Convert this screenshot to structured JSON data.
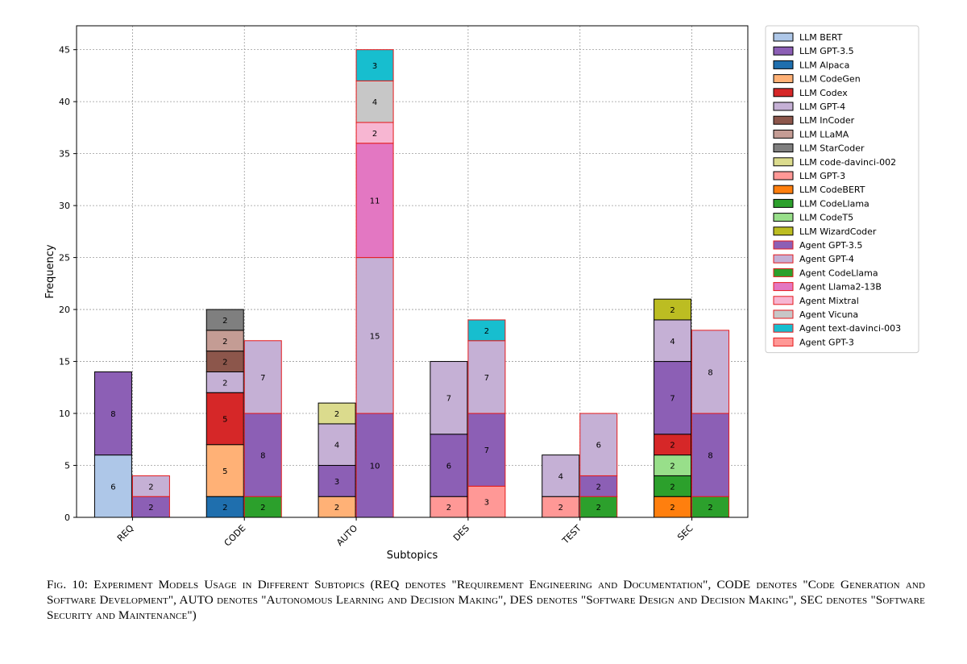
{
  "figure": {
    "caption_label": "Fig. 10:",
    "caption_text": "Experiment Models Usage in Different Subtopics (REQ denotes \"Requirement Engineering and Documentation\", CODE denotes \"Code Generation and Software Development\", AUTO denotes \"Autonomous Learning and Decision Making\", DES denotes \"Software Design and Decision Making\", SEC denotes \"Software Security and Maintenance\")"
  },
  "chart_data": {
    "type": "bar",
    "stacked": true,
    "grouped": true,
    "xlabel": "Subtopics",
    "ylabel": "Frequency",
    "ylim": [
      0,
      47.3
    ],
    "yticks": [
      0,
      5,
      10,
      15,
      20,
      25,
      30,
      35,
      40,
      45
    ],
    "grid": true,
    "legend_position": "outside-right",
    "categories": [
      "REQ",
      "CODE",
      "AUTO",
      "DES",
      "TEST",
      "SEC"
    ],
    "legend": [
      {
        "name": "LLM BERT",
        "color": "#aec7e8",
        "edge": "#000000"
      },
      {
        "name": "LLM GPT-3.5",
        "color": "#8c5fb5",
        "edge": "#000000"
      },
      {
        "name": "LLM Alpaca",
        "color": "#1f6fae",
        "edge": "#000000"
      },
      {
        "name": "LLM CodeGen",
        "color": "#ffb176",
        "edge": "#000000"
      },
      {
        "name": "LLM Codex",
        "color": "#d62728",
        "edge": "#000000"
      },
      {
        "name": "LLM GPT-4",
        "color": "#c5b0d5",
        "edge": "#000000"
      },
      {
        "name": "LLM InCoder",
        "color": "#8c564b",
        "edge": "#000000"
      },
      {
        "name": "LLM LLaMA",
        "color": "#c49c94",
        "edge": "#000000"
      },
      {
        "name": "LLM StarCoder",
        "color": "#7f7f7f",
        "edge": "#000000"
      },
      {
        "name": "LLM code-davinci-002",
        "color": "#dbdb8d",
        "edge": "#000000"
      },
      {
        "name": "LLM GPT-3",
        "color": "#ff9896",
        "edge": "#000000"
      },
      {
        "name": "LLM CodeBERT",
        "color": "#ff7f0e",
        "edge": "#000000"
      },
      {
        "name": "LLM CodeLlama",
        "color": "#2ca02c",
        "edge": "#000000"
      },
      {
        "name": "LLM CodeT5",
        "color": "#98df8a",
        "edge": "#000000"
      },
      {
        "name": "LLM WizardCoder",
        "color": "#bcbd22",
        "edge": "#000000"
      },
      {
        "name": "Agent GPT-3.5",
        "color": "#8c5fb5",
        "edge": "#e41a1c"
      },
      {
        "name": "Agent GPT-4",
        "color": "#c5b0d5",
        "edge": "#e41a1c"
      },
      {
        "name": "Agent CodeLlama",
        "color": "#2ca02c",
        "edge": "#e41a1c"
      },
      {
        "name": "Agent Llama2-13B",
        "color": "#e377c2",
        "edge": "#e41a1c"
      },
      {
        "name": "Agent Mixtral",
        "color": "#f7b6d2",
        "edge": "#e41a1c"
      },
      {
        "name": "Agent Vicuna",
        "color": "#c7c7c7",
        "edge": "#e41a1c"
      },
      {
        "name": "Agent text-davinci-003",
        "color": "#17becf",
        "edge": "#e41a1c"
      },
      {
        "name": "Agent GPT-3",
        "color": "#ff9896",
        "edge": "#e41a1c"
      }
    ],
    "bars": {
      "REQ": {
        "llm": [
          [
            "LLM BERT",
            6
          ],
          [
            "LLM GPT-3.5",
            8
          ]
        ],
        "agent": [
          [
            "Agent GPT-3.5",
            2
          ],
          [
            "Agent GPT-4",
            2
          ]
        ]
      },
      "CODE": {
        "llm": [
          [
            "LLM Alpaca",
            2
          ],
          [
            "LLM CodeGen",
            5
          ],
          [
            "LLM Codex",
            5
          ],
          [
            "LLM GPT-4",
            2
          ],
          [
            "LLM InCoder",
            2
          ],
          [
            "LLM LLaMA",
            2
          ],
          [
            "LLM StarCoder",
            2
          ]
        ],
        "agent": [
          [
            "Agent CodeLlama",
            2
          ],
          [
            "Agent GPT-3.5",
            8
          ],
          [
            "Agent GPT-4",
            7
          ]
        ]
      },
      "AUTO": {
        "llm": [
          [
            "LLM CodeGen",
            2
          ],
          [
            "LLM GPT-3.5",
            3
          ],
          [
            "LLM GPT-4",
            4
          ],
          [
            "LLM code-davinci-002",
            2
          ]
        ],
        "agent": [
          [
            "Agent GPT-3.5",
            10
          ],
          [
            "Agent GPT-4",
            15
          ],
          [
            "Agent Llama2-13B",
            11
          ],
          [
            "Agent Mixtral",
            2
          ],
          [
            "Agent Vicuna",
            4
          ],
          [
            "Agent text-davinci-003",
            3
          ]
        ]
      },
      "DES": {
        "llm": [
          [
            "LLM GPT-3",
            2
          ],
          [
            "LLM GPT-3.5",
            6
          ],
          [
            "LLM GPT-4",
            7
          ]
        ],
        "agent": [
          [
            "Agent GPT-3",
            3
          ],
          [
            "Agent GPT-3.5",
            7
          ],
          [
            "Agent GPT-4",
            7
          ],
          [
            "Agent text-davinci-003",
            2
          ]
        ]
      },
      "TEST": {
        "llm": [
          [
            "LLM GPT-3",
            2
          ],
          [
            "LLM GPT-4",
            4
          ]
        ],
        "agent": [
          [
            "Agent CodeLlama",
            2
          ],
          [
            "Agent GPT-3.5",
            2
          ],
          [
            "Agent GPT-4",
            6
          ]
        ]
      },
      "SEC": {
        "llm": [
          [
            "LLM CodeBERT",
            2
          ],
          [
            "LLM CodeLlama",
            2
          ],
          [
            "LLM CodeT5",
            2
          ],
          [
            "LLM Codex",
            2
          ],
          [
            "LLM GPT-3.5",
            7
          ],
          [
            "LLM GPT-4",
            4
          ],
          [
            "LLM WizardCoder",
            2
          ]
        ],
        "agent": [
          [
            "Agent CodeLlama",
            2
          ],
          [
            "Agent GPT-3.5",
            8
          ],
          [
            "Agent GPT-4",
            8
          ]
        ]
      }
    }
  }
}
